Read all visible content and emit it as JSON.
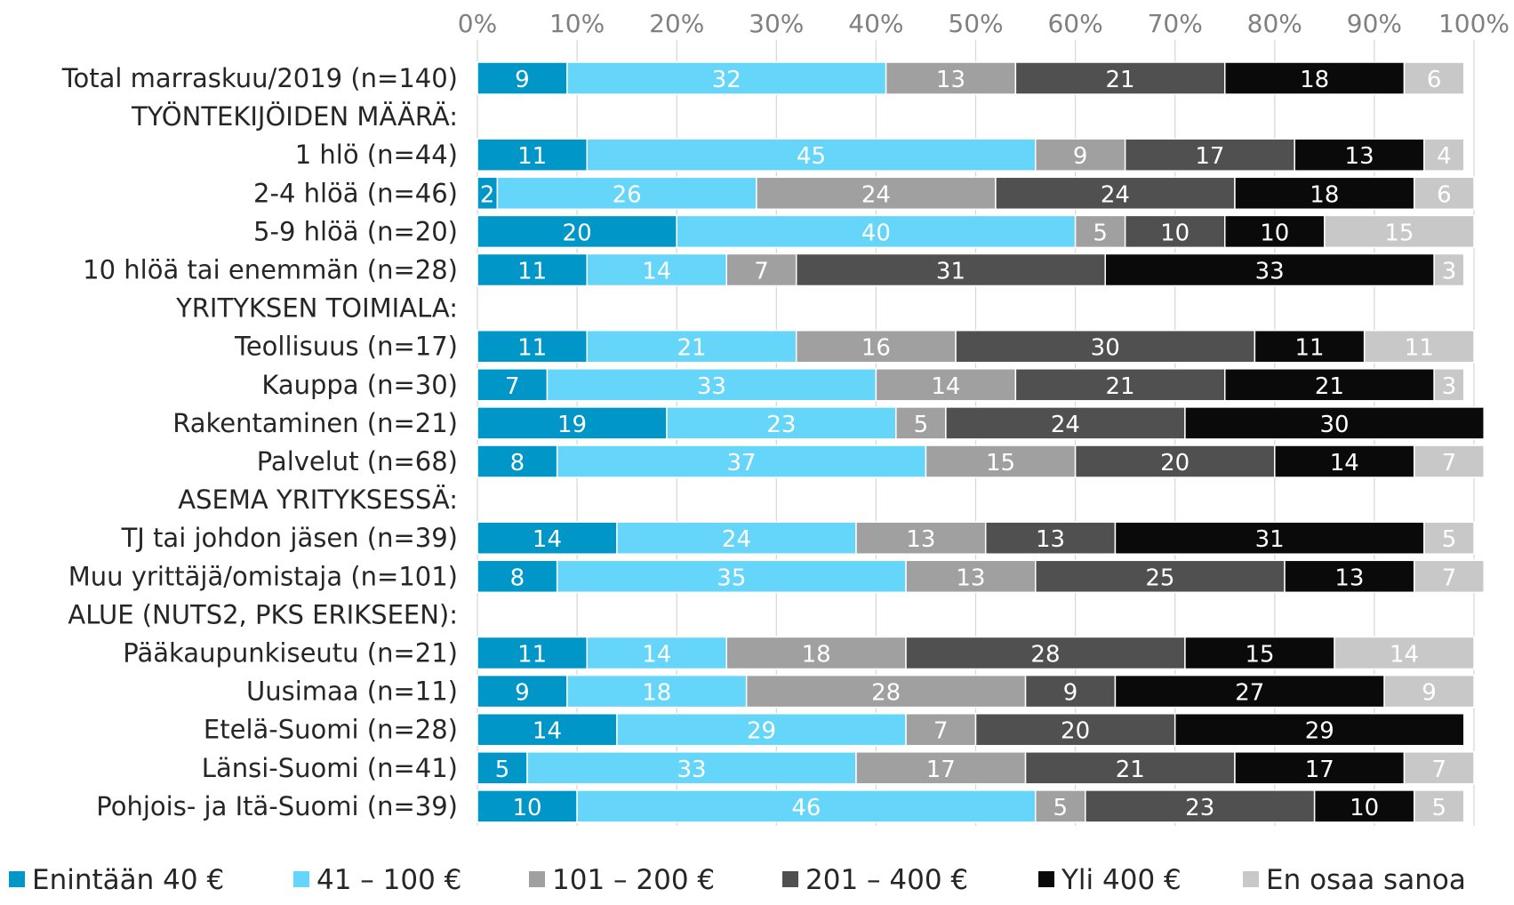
{
  "chart_data": {
    "type": "bar",
    "orientation": "horizontal",
    "stacked": true,
    "percent_stacked": true,
    "title": "",
    "xlabel": "",
    "ylabel": "",
    "xlim": [
      0,
      100
    ],
    "x_ticks": [
      "0%",
      "10%",
      "20%",
      "30%",
      "40%",
      "50%",
      "60%",
      "70%",
      "80%",
      "90%",
      "100%"
    ],
    "grid": "vertical",
    "legend_position": "bottom",
    "categories": [
      "Total marraskuu/2019 (n=140)",
      "TYÖNTEKIJÖIDEN MÄÄRÄ:",
      "1 hlö (n=44)",
      "2-4 hlöä (n=46)",
      "5-9 hlöä (n=20)",
      "10 hlöä tai enemmän (n=28)",
      "YRITYKSEN TOIMIALA:",
      "Teollisuus (n=17)",
      "Kauppa (n=30)",
      "Rakentaminen (n=21)",
      "Palvelut (n=68)",
      "ASEMA YRITYKSESSÄ:",
      "TJ tai johdon jäsen (n=39)",
      "Muu yrittäjä/omistaja (n=101)",
      "ALUE (NUTS2, PKS ERIKSEEN):",
      "Pääkaupunkiseutu (n=21)",
      "Uusimaa (n=11)",
      "Etelä-Suomi (n=28)",
      "Länsi-Suomi (n=41)",
      "Pohjois- ja Itä-Suomi (n=39)"
    ],
    "series": [
      {
        "name": "Enintään  40 €",
        "color": "#0096C8",
        "label_color": "#ffffff",
        "values": [
          9,
          null,
          11,
          2,
          20,
          11,
          null,
          11,
          7,
          19,
          8,
          null,
          14,
          8,
          null,
          11,
          9,
          14,
          5,
          10
        ]
      },
      {
        "name": "41 – 100 €",
        "color": "#66D5FA",
        "label_color": "#ffffff",
        "values": [
          32,
          null,
          45,
          26,
          40,
          14,
          null,
          21,
          33,
          23,
          37,
          null,
          24,
          35,
          null,
          14,
          18,
          29,
          33,
          46
        ]
      },
      {
        "name": "101 – 200 €",
        "color": "#A0A0A0",
        "label_color": "#ffffff",
        "values": [
          13,
          null,
          9,
          24,
          5,
          7,
          null,
          16,
          14,
          5,
          15,
          null,
          13,
          13,
          null,
          18,
          28,
          7,
          17,
          5
        ]
      },
      {
        "name": "201 – 400 €",
        "color": "#505050",
        "label_color": "#ffffff",
        "values": [
          21,
          null,
          17,
          24,
          10,
          31,
          null,
          30,
          21,
          24,
          20,
          null,
          13,
          25,
          null,
          28,
          9,
          20,
          21,
          23
        ]
      },
      {
        "name": "Yli  400 €",
        "color": "#0A0A0A",
        "label_color": "#ffffff",
        "values": [
          18,
          null,
          13,
          18,
          10,
          33,
          null,
          11,
          21,
          30,
          14,
          null,
          31,
          13,
          null,
          15,
          27,
          29,
          17,
          10
        ]
      },
      {
        "name": "En osaa sanoa",
        "color": "#C8C8C8",
        "label_color": "#ffffff",
        "values": [
          6,
          null,
          4,
          6,
          15,
          3,
          null,
          11,
          3,
          null,
          7,
          null,
          5,
          7,
          null,
          14,
          9,
          null,
          7,
          5
        ]
      }
    ]
  }
}
